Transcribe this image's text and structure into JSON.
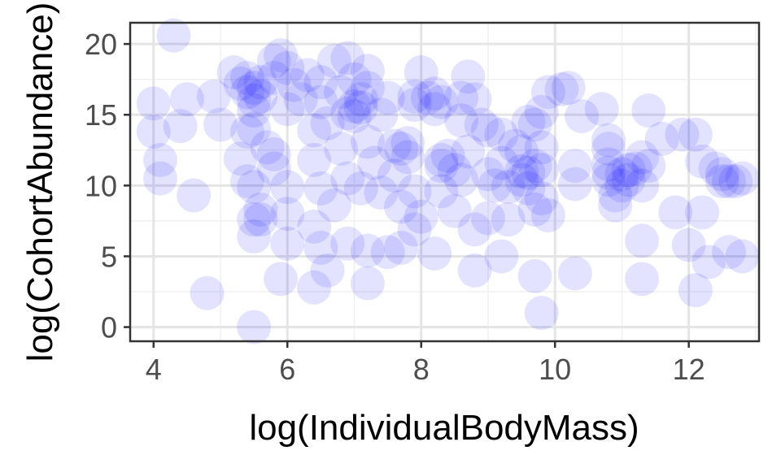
{
  "chart_data": {
    "type": "scatter",
    "xlabel": "log(IndividualBodyMass)",
    "ylabel": "log(CohortAbundance)",
    "xlim": [
      3.65,
      13.05
    ],
    "ylim": [
      -1.0,
      21.5
    ],
    "x_ticks": [
      4,
      6,
      8,
      10,
      12
    ],
    "y_ticks": [
      0,
      5,
      10,
      15,
      20
    ],
    "grid": true,
    "point_color": "#0000ff",
    "point_opacity": 0.11,
    "points": [
      [
        4.3,
        20.6
      ],
      [
        4.0,
        15.8
      ],
      [
        4.0,
        13.8
      ],
      [
        4.1,
        11.8
      ],
      [
        4.1,
        10.5
      ],
      [
        4.5,
        16.1
      ],
      [
        4.4,
        14.2
      ],
      [
        4.6,
        9.3
      ],
      [
        4.8,
        2.4
      ],
      [
        4.9,
        16.3
      ],
      [
        5.0,
        14.3
      ],
      [
        5.2,
        18.0
      ],
      [
        5.3,
        17.2
      ],
      [
        5.4,
        17.6
      ],
      [
        5.4,
        16.6
      ],
      [
        5.5,
        16.0
      ],
      [
        5.5,
        16.9
      ],
      [
        5.5,
        15.3
      ],
      [
        5.6,
        16.3
      ],
      [
        5.6,
        17.3
      ],
      [
        5.5,
        14.0
      ],
      [
        5.4,
        13.8
      ],
      [
        5.3,
        11.9
      ],
      [
        5.4,
        10.3
      ],
      [
        5.5,
        9.9
      ],
      [
        5.5,
        7.6
      ],
      [
        5.6,
        7.6
      ],
      [
        5.6,
        8.3
      ],
      [
        5.5,
        6.4
      ],
      [
        5.5,
        0.0
      ],
      [
        5.8,
        18.8
      ],
      [
        5.9,
        19.2
      ],
      [
        5.8,
        17.6
      ],
      [
        6.0,
        18.3
      ],
      [
        6.1,
        17.1
      ],
      [
        6.3,
        17.8
      ],
      [
        6.2,
        16.1
      ],
      [
        6.0,
        15.4
      ],
      [
        5.7,
        12.7
      ],
      [
        5.8,
        12.2
      ],
      [
        5.8,
        11.2
      ],
      [
        6.0,
        9.9
      ],
      [
        6.0,
        8.0
      ],
      [
        6.0,
        5.9
      ],
      [
        5.9,
        3.4
      ],
      [
        6.5,
        17.3
      ],
      [
        6.5,
        15.9
      ],
      [
        6.6,
        14.4
      ],
      [
        6.4,
        13.9
      ],
      [
        6.4,
        11.8
      ],
      [
        6.5,
        9.8
      ],
      [
        6.4,
        7.1
      ],
      [
        6.5,
        5.6
      ],
      [
        6.4,
        2.8
      ],
      [
        6.6,
        4.0
      ],
      [
        6.7,
        18.8
      ],
      [
        6.9,
        19.0
      ],
      [
        6.8,
        16.6
      ],
      [
        7.0,
        17.5
      ],
      [
        7.0,
        15.6
      ],
      [
        7.0,
        14.9
      ],
      [
        6.9,
        15.1
      ],
      [
        6.8,
        12.6
      ],
      [
        6.9,
        10.5
      ],
      [
        6.7,
        8.6
      ],
      [
        7.2,
        18.1
      ],
      [
        7.2,
        16.9
      ],
      [
        7.1,
        16.1
      ],
      [
        7.1,
        15.5
      ],
      [
        7.2,
        13.1
      ],
      [
        7.3,
        11.6
      ],
      [
        7.4,
        9.5
      ],
      [
        7.1,
        9.8
      ],
      [
        6.9,
        5.9
      ],
      [
        7.2,
        5.4
      ],
      [
        7.2,
        3.1
      ],
      [
        7.4,
        15.0
      ],
      [
        7.5,
        16.2
      ],
      [
        7.6,
        12.8
      ],
      [
        7.6,
        10.7
      ],
      [
        7.7,
        12.6
      ],
      [
        7.7,
        8.5
      ],
      [
        7.5,
        5.3
      ],
      [
        7.7,
        5.6
      ],
      [
        7.9,
        16.3
      ],
      [
        7.9,
        15.7
      ],
      [
        7.8,
        13.0
      ],
      [
        7.8,
        12.0
      ],
      [
        7.9,
        9.6
      ],
      [
        7.9,
        6.9
      ],
      [
        8.0,
        7.8
      ],
      [
        8.0,
        18.0
      ],
      [
        8.1,
        16.2
      ],
      [
        8.2,
        15.4
      ],
      [
        8.2,
        16.5
      ],
      [
        8.3,
        15.9
      ],
      [
        8.3,
        11.4
      ],
      [
        8.3,
        9.6
      ],
      [
        8.2,
        5.2
      ],
      [
        8.3,
        11.8
      ],
      [
        8.4,
        12.1
      ],
      [
        8.5,
        11.1
      ],
      [
        8.5,
        8.2
      ],
      [
        8.6,
        16.2
      ],
      [
        8.6,
        14.6
      ],
      [
        8.6,
        10.4
      ],
      [
        8.7,
        17.7
      ],
      [
        8.8,
        16.1
      ],
      [
        8.7,
        12.4
      ],
      [
        8.8,
        6.9
      ],
      [
        8.8,
        4.0
      ],
      [
        8.9,
        14.3
      ],
      [
        9.0,
        13.9
      ],
      [
        9.0,
        10.8
      ],
      [
        9.0,
        7.7
      ],
      [
        9.1,
        10.0
      ],
      [
        9.2,
        13.6
      ],
      [
        9.2,
        11.6
      ],
      [
        9.2,
        5.0
      ],
      [
        9.3,
        7.6
      ],
      [
        9.3,
        9.9
      ],
      [
        9.4,
        12.8
      ],
      [
        9.5,
        12.4
      ],
      [
        9.5,
        11.0
      ],
      [
        9.6,
        14.5
      ],
      [
        9.5,
        10.4
      ],
      [
        9.6,
        10.9
      ],
      [
        9.6,
        9.8
      ],
      [
        9.7,
        14.3
      ],
      [
        9.7,
        11.4
      ],
      [
        9.7,
        8.3
      ],
      [
        9.7,
        3.6
      ],
      [
        9.8,
        15.2
      ],
      [
        9.8,
        12.7
      ],
      [
        9.8,
        11.1
      ],
      [
        9.8,
        9.1
      ],
      [
        9.9,
        7.9
      ],
      [
        9.9,
        16.6
      ],
      [
        9.8,
        1.0
      ],
      [
        10.1,
        16.8
      ],
      [
        10.2,
        16.9
      ],
      [
        10.4,
        14.9
      ],
      [
        10.3,
        11.4
      ],
      [
        10.3,
        10.1
      ],
      [
        10.3,
        3.8
      ],
      [
        10.7,
        15.4
      ],
      [
        10.8,
        13.2
      ],
      [
        10.8,
        12.6
      ],
      [
        10.8,
        11.5
      ],
      [
        10.8,
        10.9
      ],
      [
        10.8,
        10.4
      ],
      [
        10.9,
        9.3
      ],
      [
        10.9,
        8.6
      ],
      [
        11.0,
        10.8
      ],
      [
        11.0,
        10.0
      ],
      [
        11.1,
        10.4
      ],
      [
        11.1,
        11.1
      ],
      [
        11.2,
        11.2
      ],
      [
        11.3,
        10.0
      ],
      [
        11.3,
        12.0
      ],
      [
        11.4,
        15.3
      ],
      [
        11.4,
        11.4
      ],
      [
        11.3,
        6.1
      ],
      [
        11.3,
        3.4
      ],
      [
        11.6,
        13.3
      ],
      [
        11.9,
        13.6
      ],
      [
        11.8,
        8.1
      ],
      [
        12.0,
        5.8
      ],
      [
        12.1,
        13.6
      ],
      [
        12.2,
        11.7
      ],
      [
        12.1,
        2.6
      ],
      [
        12.2,
        8.1
      ],
      [
        12.3,
        4.6
      ],
      [
        12.4,
        11.2
      ],
      [
        12.5,
        10.3
      ],
      [
        12.5,
        10.8
      ],
      [
        12.6,
        10.3
      ],
      [
        12.6,
        5.3
      ],
      [
        12.7,
        10.3
      ],
      [
        12.8,
        10.5
      ],
      [
        12.8,
        5.0
      ]
    ]
  }
}
